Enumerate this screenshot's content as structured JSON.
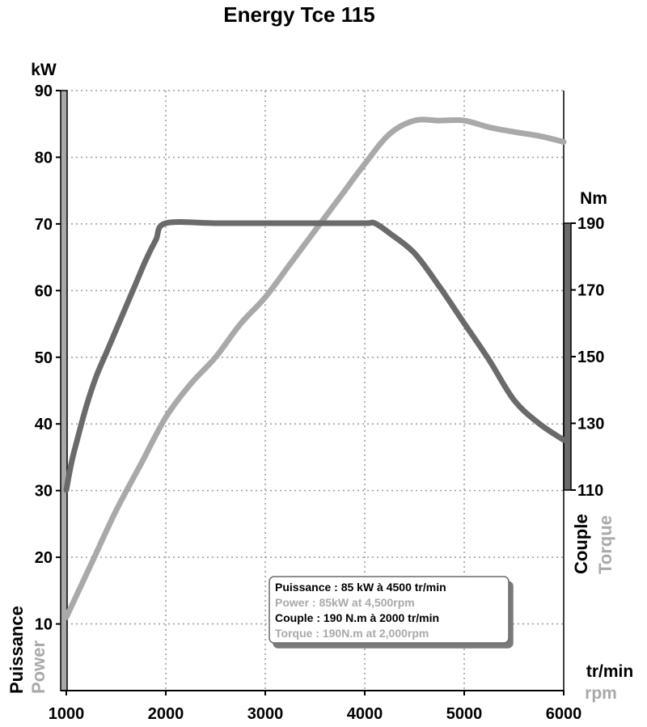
{
  "chart_data": {
    "type": "line",
    "title": "Energy Tce 115",
    "xlabel": "tr/min",
    "xlabel_en": "rpm",
    "ylabel_left": "kW",
    "ylabel_right": "Nm",
    "side_left_fr": "Puissance",
    "side_left_en": "Power",
    "side_right_fr": "Couple",
    "side_right_en": "Torque",
    "xlim": [
      1000,
      6000
    ],
    "ylim_left": [
      0,
      90
    ],
    "ylim_right": [
      110,
      190
    ],
    "x_ticks": [
      "1000",
      "2000",
      "3000",
      "4000",
      "5000",
      "6000"
    ],
    "y_ticks_left": [
      "10",
      "20",
      "30",
      "40",
      "50",
      "60",
      "70",
      "80",
      "90"
    ],
    "y_ticks_right": [
      "110",
      "130",
      "150",
      "170",
      "190"
    ],
    "grid": true,
    "colors": {
      "power": "#a9a9a9",
      "torque": "#6a6a6a",
      "axis": "#000000",
      "grid": "#9a9a9a"
    },
    "series": [
      {
        "key": "power",
        "axis": "left",
        "x": [
          1000,
          1250,
          1500,
          1750,
          2000,
          2250,
          2500,
          2750,
          3000,
          3250,
          3500,
          3750,
          4000,
          4250,
          4500,
          4750,
          5000,
          5250,
          5500,
          5750,
          6000
        ],
        "values": [
          11,
          19,
          27,
          34,
          41,
          46,
          50,
          55,
          59,
          64,
          69,
          74,
          79,
          83.5,
          85.5,
          85.5,
          85.5,
          84.5,
          83.8,
          83.2,
          82.3
        ]
      },
      {
        "key": "torque",
        "axis": "right",
        "x": [
          1000,
          1050,
          1100,
          1200,
          1300,
          1400,
          1500,
          1600,
          1700,
          1800,
          1900,
          2000,
          2500,
          3000,
          3500,
          4000,
          4100,
          4250,
          4500,
          4750,
          5000,
          5250,
          5500,
          5750,
          6000
        ],
        "values": [
          110,
          118,
          124,
          135,
          144,
          151,
          158,
          165,
          172,
          179,
          185,
          190,
          190,
          190,
          190,
          190,
          190,
          187,
          181,
          171,
          160,
          149,
          137,
          130,
          125
        ]
      }
    ],
    "legend": {
      "placement": "bottom-right",
      "lines": [
        {
          "text": "Puissance : 85 kW à 4500 tr/min",
          "tone": "dark"
        },
        {
          "text": "Power : 85kW at 4,500rpm",
          "tone": "light"
        },
        {
          "text": "Couple : 190 N.m à 2000 tr/min",
          "tone": "dark"
        },
        {
          "text": "Torque : 190N.m at 2,000rpm",
          "tone": "light"
        }
      ]
    }
  }
}
